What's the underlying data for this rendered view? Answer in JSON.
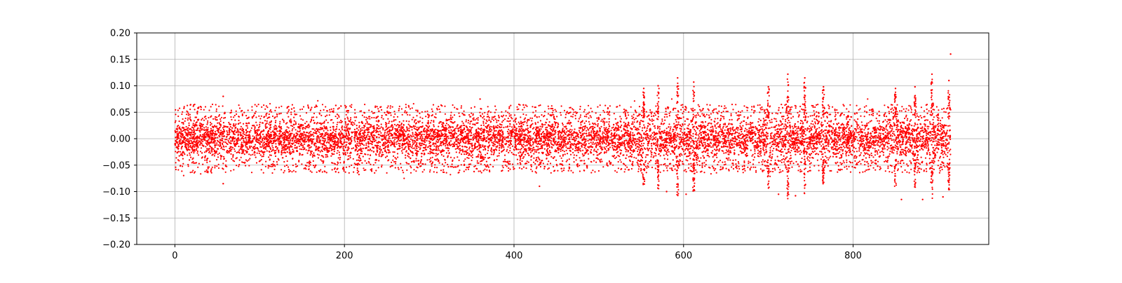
{
  "chart_data": {
    "type": "scatter",
    "title": "",
    "xlabel": "",
    "ylabel": "",
    "xlim": [
      -45,
      960
    ],
    "ylim": [
      -0.2,
      0.2
    ],
    "xticks": [
      0,
      200,
      400,
      600,
      800
    ],
    "xtick_labels": [
      "0",
      "200",
      "400",
      "600",
      "800"
    ],
    "yticks": [
      -0.2,
      -0.15,
      -0.1,
      -0.05,
      0.0,
      0.05,
      0.1,
      0.15,
      0.2
    ],
    "ytick_labels": [
      "−0.20",
      "−0.15",
      "−0.10",
      "−0.05",
      "0.00",
      "0.05",
      "0.10",
      "0.15",
      "0.20"
    ],
    "grid": true,
    "legend": "none",
    "series": [
      {
        "color": "#ff0000",
        "marker": "dot",
        "x_range": [
          0,
          915
        ],
        "dense_band": [
          -0.03,
          0.03
        ],
        "typical_extent": [
          -0.06,
          0.07
        ],
        "outlier_points": [
          {
            "x": 57,
            "y": 0.08
          },
          {
            "x": 57,
            "y": -0.085
          },
          {
            "x": 360,
            "y": 0.075
          },
          {
            "x": 430,
            "y": -0.09
          },
          {
            "x": 553,
            "y": 0.095
          },
          {
            "x": 570,
            "y": 0.1
          },
          {
            "x": 580,
            "y": -0.1
          },
          {
            "x": 593,
            "y": 0.115
          },
          {
            "x": 603,
            "y": -0.105
          },
          {
            "x": 612,
            "y": 0.107
          },
          {
            "x": 700,
            "y": 0.098
          },
          {
            "x": 712,
            "y": -0.105
          },
          {
            "x": 723,
            "y": 0.122
          },
          {
            "x": 732,
            "y": -0.108
          },
          {
            "x": 743,
            "y": 0.115
          },
          {
            "x": 765,
            "y": 0.098
          },
          {
            "x": 850,
            "y": 0.095
          },
          {
            "x": 857,
            "y": -0.115
          },
          {
            "x": 873,
            "y": 0.098
          },
          {
            "x": 882,
            "y": -0.115
          },
          {
            "x": 893,
            "y": 0.122
          },
          {
            "x": 906,
            "y": -0.11
          },
          {
            "x": 913,
            "y": 0.11
          },
          {
            "x": 915,
            "y": 0.16
          }
        ],
        "spike_regions": [
          {
            "x": 553,
            "amplitude": 0.09
          },
          {
            "x": 570,
            "amplitude": 0.095
          },
          {
            "x": 593,
            "amplitude": 0.11
          },
          {
            "x": 612,
            "amplitude": 0.1
          },
          {
            "x": 700,
            "amplitude": 0.095
          },
          {
            "x": 723,
            "amplitude": 0.115
          },
          {
            "x": 743,
            "amplitude": 0.11
          },
          {
            "x": 765,
            "amplitude": 0.095
          },
          {
            "x": 850,
            "amplitude": 0.09
          },
          {
            "x": 873,
            "amplitude": 0.095
          },
          {
            "x": 893,
            "amplitude": 0.115
          },
          {
            "x": 913,
            "amplitude": 0.1
          }
        ]
      }
    ]
  }
}
